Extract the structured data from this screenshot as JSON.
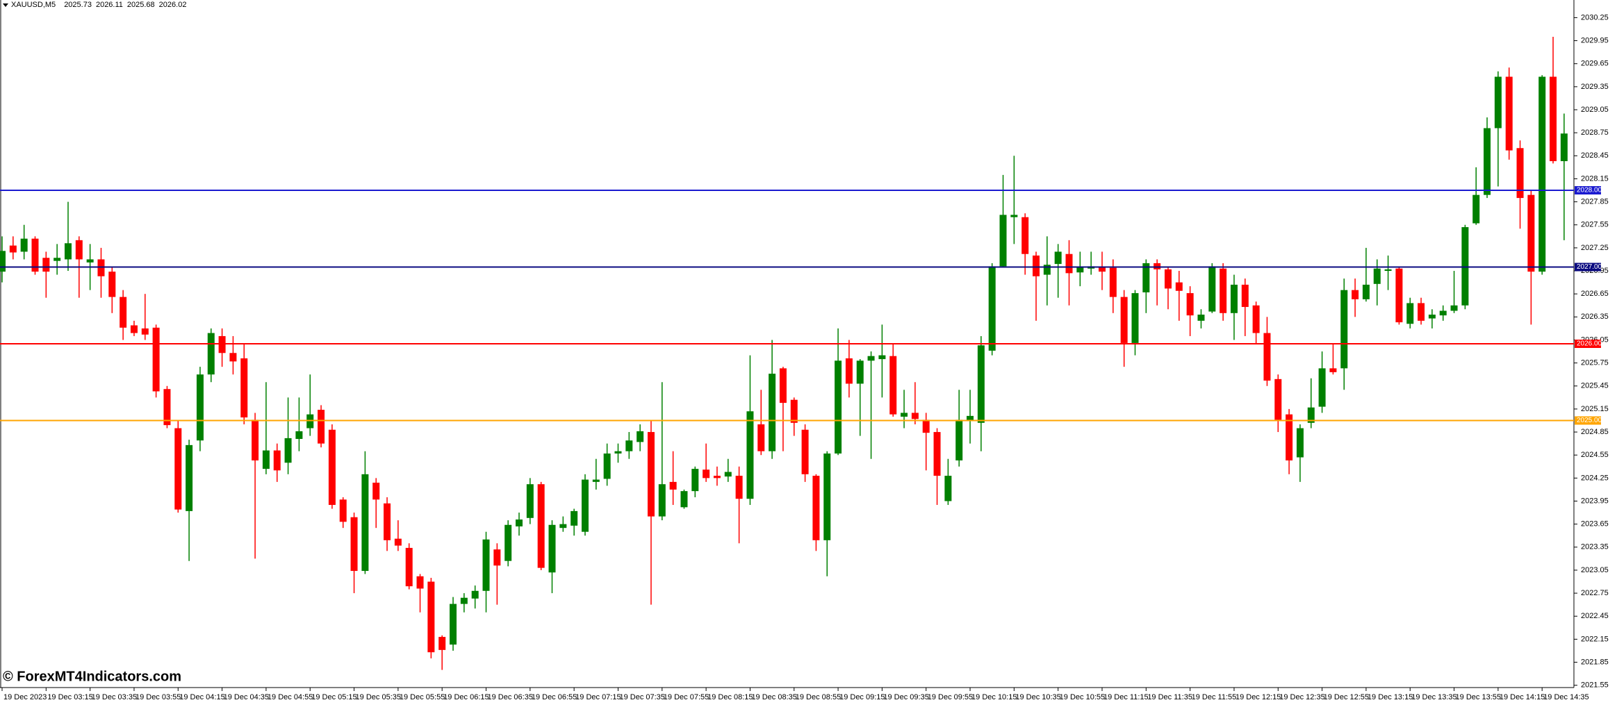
{
  "chart_data": {
    "type": "candlestick",
    "symbol": "XAUUSD,M5",
    "ohlc": [
      2025.73,
      2026.11,
      2025.68,
      2026.02
    ],
    "watermark": "© ForexMT4Indicators.com",
    "up_color": "#008000",
    "down_color": "#ff0000",
    "ylim": [
      2021.52,
      2030.48
    ],
    "yticks": [
      2021.55,
      2021.85,
      2022.15,
      2022.45,
      2022.75,
      2023.05,
      2023.35,
      2023.65,
      2023.95,
      2024.25,
      2024.55,
      2024.85,
      2025.15,
      2025.45,
      2025.75,
      2026.05,
      2026.35,
      2026.65,
      2026.95,
      2027.25,
      2027.55,
      2027.85,
      2028.15,
      2028.45,
      2028.75,
      2029.05,
      2029.35,
      2029.65,
      2029.95,
      2030.25
    ],
    "levels": [
      {
        "value": 2028,
        "label": "2028.00",
        "color": "#1a1ad0"
      },
      {
        "value": 2027,
        "label": "2027.00",
        "color": "#0a0a80"
      },
      {
        "value": 2026,
        "label": "2026.00",
        "color": "#ff0000"
      },
      {
        "value": 2025,
        "label": "2025.00",
        "color": "#ffa500"
      }
    ],
    "categories": [
      "19 Dec 2023",
      null,
      null,
      null,
      "19 Dec 03:15",
      null,
      null,
      null,
      "19 Dec 03:35",
      null,
      null,
      null,
      "19 Dec 03:55",
      null,
      null,
      null,
      "19 Dec 04:15",
      null,
      null,
      null,
      "19 Dec 04:35",
      null,
      null,
      null,
      "19 Dec 04:55",
      null,
      null,
      null,
      "19 Dec 05:15",
      null,
      null,
      null,
      "19 Dec 05:35",
      null,
      null,
      null,
      "19 Dec 05:55",
      null,
      null,
      null,
      "19 Dec 06:15",
      null,
      null,
      null,
      "19 Dec 06:35",
      null,
      null,
      null,
      "19 Dec 06:55",
      null,
      null,
      null,
      "19 Dec 07:15",
      null,
      null,
      null,
      "19 Dec 07:35",
      null,
      null,
      null,
      "19 Dec 07:55",
      null,
      null,
      null,
      "19 Dec 08:15",
      null,
      null,
      null,
      "19 Dec 08:35",
      null,
      null,
      null,
      "19 Dec 08:55",
      null,
      null,
      null,
      "19 Dec 09:15",
      null,
      null,
      null,
      "19 Dec 09:35",
      null,
      null,
      null,
      "19 Dec 09:55",
      null,
      null,
      null,
      "19 Dec 10:15",
      null,
      null,
      null,
      "19 Dec 10:35",
      null,
      null,
      null,
      "19 Dec 10:55",
      null,
      null,
      null,
      "19 Dec 11:15",
      null,
      null,
      null,
      "19 Dec 11:35",
      null,
      null,
      null,
      "19 Dec 11:55",
      null,
      null,
      null,
      "19 Dec 12:15",
      null,
      null,
      null,
      "19 Dec 12:35",
      null,
      null,
      null,
      "19 Dec 12:55",
      null,
      null,
      null,
      "19 Dec 13:15",
      null,
      null,
      null,
      "19 Dec 13:35",
      null,
      null,
      null,
      "19 Dec 13:55",
      null,
      null,
      null,
      "19 Dec 14:15",
      null,
      null,
      null,
      "19 Dec 14:35",
      null,
      null
    ],
    "open": [
      2026.94,
      2027.28,
      2027.2,
      2027.37,
      2027.12,
      2027.08,
      2027.1,
      2027.35,
      2027.06,
      2027.1,
      2026.94,
      2026.61,
      2026.24,
      2026.2,
      2026.21,
      2025.41,
      2024.9,
      2023.82,
      2024.74,
      2025.6,
      2026.1,
      2025.88,
      2025.81,
      2025.01,
      2024.37,
      2024.61,
      2024.45,
      2024.76,
      2024.9,
      2025.14,
      2024.88,
      2023.97,
      2023.74,
      2023.04,
      2024.19,
      2023.92,
      2023.46,
      2023.34,
      2022.97,
      2022.9,
      2022.18,
      2022.08,
      2022.61,
      2022.68,
      2022.78,
      2023.32,
      2023.17,
      2023.62,
      2023.73,
      2024.17,
      2023.02,
      2023.6,
      2023.63,
      2023.55,
      2024.2,
      2024.24,
      2024.57,
      2024.6,
      2024.72,
      2024.85,
      2023.75,
      2024.2,
      2023.87,
      2024.08,
      2024.36,
      2024.28,
      2024.27,
      2024.28,
      2023.98,
      2024.95,
      2024.6,
      2025.68,
      2025.27,
      2024.88,
      2024.28,
      2023.44,
      2024.57,
      2025.81,
      2025.48,
      2025.78,
      2025.8,
      2025.84,
      2025.05,
      2025.1,
      2025.01,
      2024.85,
      2023.95,
      2024.48,
      2025.0,
      2024.97,
      2025.91,
      2027.01,
      2027.65,
      2027.65,
      2027.15,
      2026.9,
      2027.04,
      2027.17,
      2026.93,
      2026.98,
      2027.0,
      2026.99,
      2026.61,
      2026.01,
      2026.67,
      2027.05,
      2026.97,
      2026.8,
      2026.66,
      2026.3,
      2026.42,
      2026.98,
      2026.4,
      2026.77,
      2026.5,
      2026.14,
      2025.54,
      2025.08,
      2024.52,
      2024.97,
      2025.18,
      2025.68,
      2025.68,
      2026.7,
      2026.58,
      2026.78,
      2026.95,
      2026.98,
      2026.26,
      2026.53,
      2026.33,
      2026.37,
      2026.43,
      2026.5,
      2027.57,
      2027.94,
      2028.81,
      2029.48,
      2028.55,
      2027.94,
      2026.94,
      2029.48,
      2028.38
    ],
    "high": [
      2027.4,
      2027.4,
      2027.55,
      2027.4,
      2027.2,
      2027.3,
      2027.85,
      2027.4,
      2027.3,
      2027.25,
      2027.0,
      2026.7,
      2026.3,
      2026.65,
      2026.25,
      2025.45,
      2025.0,
      2024.75,
      2025.7,
      2026.2,
      2026.2,
      2026.1,
      2026.0,
      2025.1,
      2025.5,
      2024.7,
      2025.3,
      2025.3,
      2025.6,
      2025.2,
      2024.95,
      2024.0,
      2023.8,
      2024.6,
      2024.25,
      2024.0,
      2023.7,
      2023.4,
      2023.0,
      2022.95,
      2022.2,
      2022.7,
      2022.75,
      2022.85,
      2023.55,
      2023.4,
      2023.7,
      2023.8,
      2024.25,
      2024.2,
      2023.7,
      2023.75,
      2023.85,
      2024.3,
      2024.5,
      2024.7,
      2024.7,
      2024.85,
      2024.95,
      2025.0,
      2025.5,
      2024.6,
      2024.1,
      2024.4,
      2024.7,
      2024.4,
      2024.5,
      2024.4,
      2025.85,
      2025.4,
      2026.05,
      2025.7,
      2025.3,
      2024.95,
      2024.3,
      2024.6,
      2026.2,
      2026.05,
      2025.8,
      2025.9,
      2026.25,
      2026.0,
      2025.4,
      2025.5,
      2025.1,
      2024.9,
      2024.5,
      2025.4,
      2025.4,
      2026.1,
      2027.05,
      2028.2,
      2028.45,
      2027.7,
      2027.2,
      2027.4,
      2027.3,
      2027.35,
      2027.2,
      2027.2,
      2027.2,
      2027.1,
      2026.7,
      2026.7,
      2027.1,
      2027.1,
      2027.0,
      2026.95,
      2026.75,
      2026.45,
      2027.05,
      2027.05,
      2026.9,
      2026.85,
      2026.55,
      2026.35,
      2025.6,
      2025.15,
      2024.95,
      2025.55,
      2025.9,
      2026.0,
      2026.85,
      2026.85,
      2027.25,
      2027.1,
      2027.15,
      2027.0,
      2026.6,
      2026.6,
      2026.45,
      2026.5,
      2026.95,
      2027.55,
      2028.3,
      2028.95,
      2029.55,
      2029.6,
      2028.65,
      2028.0,
      2029.5,
      2030.0,
      2029.0
    ],
    "low": [
      2026.8,
      2027.1,
      2027.1,
      2026.9,
      2026.6,
      2026.9,
      2026.95,
      2026.6,
      2026.7,
      2026.6,
      2026.4,
      2026.05,
      2026.1,
      2026.05,
      2025.3,
      2024.9,
      2023.8,
      2023.17,
      2024.6,
      2025.5,
      2025.7,
      2025.6,
      2024.95,
      2023.2,
      2024.3,
      2024.2,
      2024.3,
      2024.6,
      2024.8,
      2024.65,
      2023.85,
      2023.6,
      2022.75,
      2023.0,
      2023.6,
      2023.3,
      2023.3,
      2022.8,
      2022.5,
      2021.9,
      2021.75,
      2022.0,
      2022.5,
      2022.55,
      2022.5,
      2022.6,
      2023.1,
      2023.5,
      2023.65,
      2023.05,
      2022.75,
      2023.55,
      2023.5,
      2023.5,
      2024.1,
      2024.15,
      2024.45,
      2024.5,
      2024.6,
      2022.6,
      2023.7,
      2023.9,
      2023.85,
      2024.0,
      2024.2,
      2024.15,
      2024.2,
      2023.4,
      2023.9,
      2024.55,
      2024.5,
      2024.6,
      2024.8,
      2024.2,
      2023.3,
      2022.97,
      2024.55,
      2025.3,
      2024.8,
      2024.5,
      2025.3,
      2025.05,
      2024.9,
      2024.95,
      2024.35,
      2023.9,
      2023.9,
      2024.4,
      2024.7,
      2024.6,
      2025.85,
      2027.0,
      2027.3,
      2026.9,
      2026.3,
      2026.5,
      2026.6,
      2026.5,
      2026.75,
      2026.9,
      2026.7,
      2026.4,
      2025.7,
      2025.85,
      2026.4,
      2026.5,
      2026.45,
      2026.3,
      2026.1,
      2026.2,
      2026.4,
      2026.3,
      2026.05,
      2026.1,
      2026.0,
      2025.45,
      2024.85,
      2024.3,
      2024.2,
      2024.9,
      2025.1,
      2025.6,
      2025.4,
      2026.35,
      2026.55,
      2026.5,
      2026.7,
      2026.25,
      2026.2,
      2026.25,
      2026.2,
      2026.3,
      2026.4,
      2026.45,
      2027.55,
      2027.9,
      2028.05,
      2028.4,
      2027.5,
      2026.25,
      2026.9,
      2028.35,
      2027.35
    ],
    "close": [
      2027.21,
      2027.19,
      2027.37,
      2026.94,
      2026.94,
      2027.12,
      2027.31,
      2027.1,
      2027.1,
      2026.88,
      2026.61,
      2026.21,
      2026.14,
      2026.12,
      2025.38,
      2024.94,
      2023.84,
      2024.68,
      2025.6,
      2026.14,
      2025.88,
      2025.77,
      2025.04,
      2024.48,
      2024.61,
      2024.35,
      2024.77,
      2024.86,
      2025.08,
      2024.7,
      2023.9,
      2023.68,
      2023.04,
      2024.3,
      2023.97,
      2023.44,
      2023.37,
      2022.84,
      2022.81,
      2021.98,
      2022.01,
      2022.61,
      2022.69,
      2022.78,
      2023.45,
      2023.11,
      2023.64,
      2023.71,
      2024.17,
      2023.08,
      2023.64,
      2023.65,
      2023.82,
      2024.23,
      2024.23,
      2024.57,
      2024.6,
      2024.74,
      2024.86,
      2023.75,
      2024.17,
      2024.1,
      2024.08,
      2024.37,
      2024.25,
      2024.25,
      2024.33,
      2023.98,
      2025.12,
      2024.6,
      2025.61,
      2025.23,
      2024.97,
      2024.3,
      2023.44,
      2024.57,
      2025.78,
      2025.48,
      2025.78,
      2025.84,
      2025.85,
      2025.08,
      2025.1,
      2025.02,
      2024.84,
      2024.28,
      2024.28,
      2025.01,
      2025.06,
      2025.98,
      2027.01,
      2027.68,
      2027.68,
      2027.17,
      2026.88,
      2027.03,
      2027.2,
      2026.92,
      2027.0,
      2027.01,
      2026.94,
      2026.61,
      2026.01,
      2026.66,
      2027.05,
      2026.97,
      2026.72,
      2026.69,
      2026.37,
      2026.38,
      2027.01,
      2026.4,
      2026.77,
      2026.48,
      2026.14,
      2025.52,
      2025.01,
      2024.48,
      2024.9,
      2025.17,
      2025.68,
      2025.63,
      2026.7,
      2026.58,
      2026.77,
      2026.98,
      2026.97,
      2026.28,
      2026.53,
      2026.3,
      2026.38,
      2026.43,
      2026.5,
      2027.52,
      2027.94,
      2028.81,
      2029.48,
      2028.52,
      2027.9,
      2026.94,
      2029.48,
      2028.38,
      2028.74
    ]
  }
}
